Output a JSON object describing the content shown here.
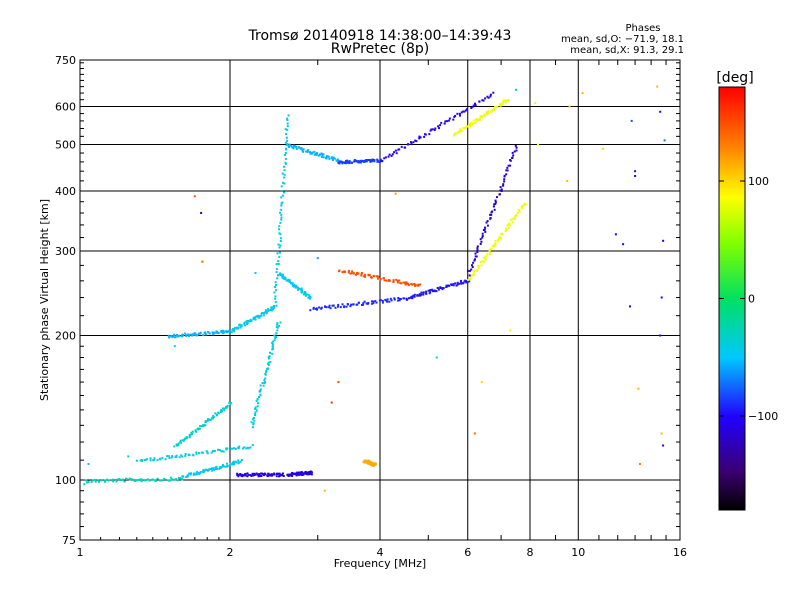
{
  "chart_data": {
    "type": "scatter",
    "title": "Tromsø 20140918 14:38:00–14:39:43",
    "subtitle": "RwPretec (8p)",
    "xlabel": "Frequency [MHz]",
    "ylabel": "Stationary phase Virtual Height [km]",
    "x_scale": "log",
    "y_scale": "log",
    "xlim": [
      1,
      16
    ],
    "ylim": [
      75,
      750
    ],
    "x_ticks": [
      1,
      2,
      4,
      6,
      8,
      10,
      16
    ],
    "x_tick_labels": [
      "1",
      "2",
      "4",
      "6",
      "8",
      "10",
      "16"
    ],
    "y_ticks": [
      75,
      100,
      200,
      300,
      400,
      500,
      600,
      750
    ],
    "y_tick_labels": [
      "75",
      "100",
      "200",
      "300",
      "400",
      "500",
      "600",
      "750"
    ],
    "grid": true,
    "phases_box": {
      "heading": "Phases",
      "line_o": "mean, sd,O: −71.9, 18.1",
      "line_x": "mean, sd,X:  91.3, 29.1"
    },
    "colorbar": {
      "label": "[deg]",
      "min": -180,
      "max": 180,
      "ticks": [
        100,
        0,
        -100
      ],
      "tick_labels": [
        "100",
        "0",
        "−100"
      ]
    },
    "traces": [
      {
        "x_start": 1.02,
        "x_end": 1.6,
        "y_start": 100,
        "y_end": 101,
        "phase": -30
      },
      {
        "x_start": 1.6,
        "x_end": 2.1,
        "y_start": 102,
        "y_end": 110,
        "phase": -45
      },
      {
        "x_start": 2.05,
        "x_end": 2.55,
        "y_start": 103,
        "y_end": 103,
        "phase": -110
      },
      {
        "x_start": 2.6,
        "x_end": 2.9,
        "y_start": 103,
        "y_end": 104,
        "phase": -110
      },
      {
        "x_start": 1.3,
        "x_end": 2.2,
        "y_start": 110,
        "y_end": 118,
        "phase": -40
      },
      {
        "x_start": 1.55,
        "x_end": 2.0,
        "y_start": 118,
        "y_end": 145,
        "phase": -35
      },
      {
        "x_start": 2.2,
        "x_end": 2.5,
        "y_start": 130,
        "y_end": 215,
        "phase": -40
      },
      {
        "x_start": 1.5,
        "x_end": 2.0,
        "y_start": 200,
        "y_end": 205,
        "phase": -55
      },
      {
        "x_start": 2.0,
        "x_end": 2.45,
        "y_start": 205,
        "y_end": 230,
        "phase": -45
      },
      {
        "x_start": 2.45,
        "x_end": 2.6,
        "y_start": 230,
        "y_end": 580,
        "phase": -40
      },
      {
        "x_start": 2.5,
        "x_end": 2.9,
        "y_start": 270,
        "y_end": 240,
        "phase": -45
      },
      {
        "x_start": 2.9,
        "x_end": 4.5,
        "y_start": 228,
        "y_end": 240,
        "phase": -90
      },
      {
        "x_start": 4.5,
        "x_end": 6.0,
        "y_start": 240,
        "y_end": 262,
        "phase": -95
      },
      {
        "x_start": 6.0,
        "x_end": 7.8,
        "y_start": 262,
        "y_end": 380,
        "phase": 80
      },
      {
        "x_start": 6.0,
        "x_end": 7.5,
        "y_start": 270,
        "y_end": 500,
        "phase": -115
      },
      {
        "x_start": 3.3,
        "x_end": 4.8,
        "y_start": 275,
        "y_end": 255,
        "phase": 150
      },
      {
        "x_start": 2.6,
        "x_end": 3.3,
        "y_start": 500,
        "y_end": 465,
        "phase": -55
      },
      {
        "x_start": 3.3,
        "x_end": 4.0,
        "y_start": 462,
        "y_end": 465,
        "phase": -85
      },
      {
        "x_start": 4.0,
        "x_end": 6.7,
        "y_start": 465,
        "y_end": 640,
        "phase": -100
      },
      {
        "x_start": 5.6,
        "x_end": 7.2,
        "y_start": 525,
        "y_end": 625,
        "phase": 80
      },
      {
        "x_start": 3.7,
        "x_end": 3.9,
        "y_start": 110,
        "y_end": 108,
        "phase": 115
      }
    ],
    "scatter_points": [
      {
        "x": 1.02,
        "y": 98,
        "phase": -40
      },
      {
        "x": 1.04,
        "y": 108,
        "phase": -30
      },
      {
        "x": 1.25,
        "y": 112,
        "phase": -35
      },
      {
        "x": 1.55,
        "y": 190,
        "phase": -40
      },
      {
        "x": 1.75,
        "y": 360,
        "phase": -110
      },
      {
        "x": 1.76,
        "y": 285,
        "phase": 140
      },
      {
        "x": 1.7,
        "y": 390,
        "phase": 150
      },
      {
        "x": 2.25,
        "y": 270,
        "phase": -50
      },
      {
        "x": 3.3,
        "y": 160,
        "phase": 150
      },
      {
        "x": 3.2,
        "y": 145,
        "phase": 160
      },
      {
        "x": 3.0,
        "y": 290,
        "phase": -60
      },
      {
        "x": 3.1,
        "y": 95,
        "phase": 110
      },
      {
        "x": 4.3,
        "y": 395,
        "phase": 120
      },
      {
        "x": 5.2,
        "y": 180,
        "phase": -40
      },
      {
        "x": 6.2,
        "y": 125,
        "phase": 140
      },
      {
        "x": 6.4,
        "y": 160,
        "phase": 100
      },
      {
        "x": 7.3,
        "y": 205,
        "phase": 90
      },
      {
        "x": 7.5,
        "y": 650,
        "phase": -30
      },
      {
        "x": 8.2,
        "y": 610,
        "phase": 90
      },
      {
        "x": 8.3,
        "y": 500,
        "phase": 80
      },
      {
        "x": 9.5,
        "y": 420,
        "phase": 110
      },
      {
        "x": 9.6,
        "y": 600,
        "phase": 100
      },
      {
        "x": 10.2,
        "y": 640,
        "phase": 110
      },
      {
        "x": 11.2,
        "y": 490,
        "phase": 100
      },
      {
        "x": 11.9,
        "y": 325,
        "phase": -100
      },
      {
        "x": 12.3,
        "y": 310,
        "phase": -100
      },
      {
        "x": 12.7,
        "y": 230,
        "phase": -110
      },
      {
        "x": 13.0,
        "y": 430,
        "phase": -100
      },
      {
        "x": 13.0,
        "y": 440,
        "phase": -110
      },
      {
        "x": 12.8,
        "y": 560,
        "phase": -80
      },
      {
        "x": 13.2,
        "y": 155,
        "phase": 110
      },
      {
        "x": 13.3,
        "y": 108,
        "phase": 130
      },
      {
        "x": 14.4,
        "y": 660,
        "phase": 110
      },
      {
        "x": 14.6,
        "y": 585,
        "phase": -100
      },
      {
        "x": 14.8,
        "y": 315,
        "phase": -100
      },
      {
        "x": 14.6,
        "y": 200,
        "phase": -100
      },
      {
        "x": 14.7,
        "y": 240,
        "phase": -100
      },
      {
        "x": 14.9,
        "y": 510,
        "phase": -70
      },
      {
        "x": 14.7,
        "y": 125,
        "phase": 110
      },
      {
        "x": 14.8,
        "y": 118,
        "phase": -100
      }
    ]
  }
}
